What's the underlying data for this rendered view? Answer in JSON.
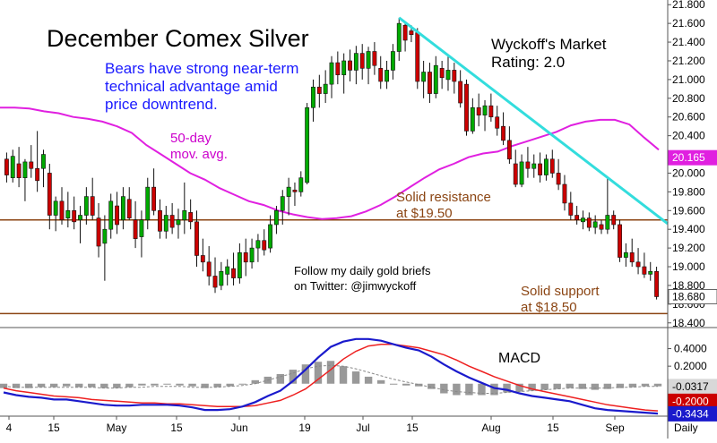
{
  "chart_data": [
    {
      "type": "candlestick",
      "title": "December Comex Silver",
      "annotations": {
        "bears": [
          "Bears have strong near-term",
          "technical advantage amid",
          "price downtrend."
        ],
        "ma": [
          "50-day",
          "mov. avg."
        ],
        "rating": [
          "Wyckoff's Market",
          "Rating: 2.0"
        ],
        "resistance": [
          "Solid resistance",
          "at $19.50"
        ],
        "support": [
          "Solid support",
          "at $18.50"
        ],
        "follow": [
          "Follow my daily gold briefs",
          "on Twitter:   @jimwyckoff"
        ]
      },
      "y_ticks": [
        "21.800",
        "21.600",
        "21.400",
        "21.200",
        "21.000",
        "20.800",
        "20.600",
        "20.400",
        "20.200",
        "20.000",
        "19.800",
        "19.600",
        "19.400",
        "19.200",
        "19.000",
        "18.800",
        "18.600",
        "18.400"
      ],
      "ylim": [
        18.35,
        21.85
      ],
      "grid": false,
      "last_price": "18.680",
      "ma_value": "20.165",
      "colors": {
        "up": "#00aa00",
        "down": "#cc0000",
        "ma": "#e020e0",
        "trendline": "#33dddd",
        "levels": "#8b4513",
        "price_tag": "#cc0000",
        "ma_tag": "#e020e0"
      },
      "levels": [
        {
          "label": "resistance",
          "value": 19.5
        },
        {
          "label": "support",
          "value": 18.5
        }
      ],
      "trendline": {
        "from": [
          "Jul 10",
          21.66
        ],
        "to": [
          "Sep 30",
          19.46
        ]
      },
      "moving_average_50": [
        20.7,
        20.7,
        20.69,
        20.66,
        20.64,
        20.6,
        20.58,
        20.55,
        20.5,
        20.43,
        20.3,
        20.2,
        20.1,
        20.0,
        19.93,
        19.84,
        19.77,
        19.7,
        19.66,
        19.6,
        19.56,
        19.53,
        19.51,
        19.52,
        19.54,
        19.59,
        19.66,
        19.75,
        19.85,
        19.95,
        20.04,
        20.1,
        20.17,
        20.21,
        20.23,
        20.29,
        20.34,
        20.39,
        20.44,
        20.51,
        20.55,
        20.57,
        20.57,
        20.52,
        20.38,
        20.25
      ],
      "candles": [
        {
          "o": 20.15,
          "h": 20.22,
          "l": 19.9,
          "c": 19.98
        },
        {
          "o": 19.95,
          "h": 20.25,
          "l": 19.9,
          "c": 20.18
        },
        {
          "o": 20.1,
          "h": 20.28,
          "l": 19.85,
          "c": 19.95
        },
        {
          "o": 19.95,
          "h": 20.15,
          "l": 19.7,
          "c": 20.12
        },
        {
          "o": 20.12,
          "h": 20.3,
          "l": 19.95,
          "c": 20.05
        },
        {
          "o": 20.05,
          "h": 20.45,
          "l": 19.8,
          "c": 19.92
        },
        {
          "o": 20.05,
          "h": 20.25,
          "l": 19.85,
          "c": 20.2
        },
        {
          "o": 20.0,
          "h": 20.1,
          "l": 19.4,
          "c": 19.55
        },
        {
          "o": 19.55,
          "h": 19.75,
          "l": 19.38,
          "c": 19.7
        },
        {
          "o": 19.7,
          "h": 19.85,
          "l": 19.45,
          "c": 19.5
        },
        {
          "o": 19.52,
          "h": 19.8,
          "l": 19.42,
          "c": 19.6
        },
        {
          "o": 19.6,
          "h": 19.75,
          "l": 19.4,
          "c": 19.48
        },
        {
          "o": 19.5,
          "h": 19.65,
          "l": 19.25,
          "c": 19.55
        },
        {
          "o": 19.55,
          "h": 19.85,
          "l": 19.45,
          "c": 19.75
        },
        {
          "o": 19.75,
          "h": 19.95,
          "l": 19.5,
          "c": 19.55
        },
        {
          "o": 19.52,
          "h": 19.68,
          "l": 19.1,
          "c": 19.22
        },
        {
          "o": 19.25,
          "h": 19.55,
          "l": 18.85,
          "c": 19.4
        },
        {
          "o": 19.4,
          "h": 19.78,
          "l": 19.3,
          "c": 19.7
        },
        {
          "o": 19.65,
          "h": 19.8,
          "l": 19.35,
          "c": 19.45
        },
        {
          "o": 19.5,
          "h": 19.85,
          "l": 19.4,
          "c": 19.75
        },
        {
          "o": 19.72,
          "h": 19.85,
          "l": 19.5,
          "c": 19.52
        },
        {
          "o": 19.5,
          "h": 19.7,
          "l": 19.2,
          "c": 19.3
        },
        {
          "o": 19.32,
          "h": 19.6,
          "l": 19.1,
          "c": 19.5
        },
        {
          "o": 19.5,
          "h": 19.95,
          "l": 19.4,
          "c": 19.85
        },
        {
          "o": 19.85,
          "h": 20.05,
          "l": 19.55,
          "c": 19.6
        },
        {
          "o": 19.6,
          "h": 19.72,
          "l": 19.3,
          "c": 19.38
        },
        {
          "o": 19.38,
          "h": 19.65,
          "l": 19.3,
          "c": 19.55
        },
        {
          "o": 19.55,
          "h": 19.68,
          "l": 19.35,
          "c": 19.42
        },
        {
          "o": 19.45,
          "h": 19.62,
          "l": 19.3,
          "c": 19.5
        },
        {
          "o": 19.5,
          "h": 19.9,
          "l": 19.35,
          "c": 19.6
        },
        {
          "o": 19.58,
          "h": 19.72,
          "l": 19.4,
          "c": 19.48
        },
        {
          "o": 19.48,
          "h": 19.6,
          "l": 19.0,
          "c": 19.12
        },
        {
          "o": 19.12,
          "h": 19.3,
          "l": 18.95,
          "c": 19.05
        },
        {
          "o": 19.05,
          "h": 19.22,
          "l": 18.8,
          "c": 18.9
        },
        {
          "o": 18.9,
          "h": 19.1,
          "l": 18.72,
          "c": 18.78
        },
        {
          "o": 18.8,
          "h": 19.05,
          "l": 18.75,
          "c": 18.95
        },
        {
          "o": 18.92,
          "h": 19.08,
          "l": 18.8,
          "c": 19.0
        },
        {
          "o": 18.98,
          "h": 19.15,
          "l": 18.8,
          "c": 18.88
        },
        {
          "o": 18.88,
          "h": 19.25,
          "l": 18.82,
          "c": 19.15
        },
        {
          "o": 19.15,
          "h": 19.3,
          "l": 18.9,
          "c": 19.05
        },
        {
          "o": 19.05,
          "h": 19.3,
          "l": 18.98,
          "c": 19.2
        },
        {
          "o": 19.2,
          "h": 19.35,
          "l": 19.05,
          "c": 19.28
        },
        {
          "o": 19.28,
          "h": 19.4,
          "l": 19.12,
          "c": 19.18
        },
        {
          "o": 19.2,
          "h": 19.55,
          "l": 19.15,
          "c": 19.45
        },
        {
          "o": 19.45,
          "h": 19.65,
          "l": 19.35,
          "c": 19.6
        },
        {
          "o": 19.6,
          "h": 19.82,
          "l": 19.45,
          "c": 19.75
        },
        {
          "o": 19.75,
          "h": 19.95,
          "l": 19.55,
          "c": 19.85
        },
        {
          "o": 19.82,
          "h": 19.9,
          "l": 19.65,
          "c": 19.8
        },
        {
          "o": 19.8,
          "h": 20.02,
          "l": 19.75,
          "c": 19.95
        },
        {
          "o": 19.9,
          "h": 20.75,
          "l": 19.88,
          "c": 20.7
        },
        {
          "o": 20.7,
          "h": 21.0,
          "l": 20.55,
          "c": 20.92
        },
        {
          "o": 20.92,
          "h": 21.05,
          "l": 20.7,
          "c": 20.85
        },
        {
          "o": 20.85,
          "h": 21.1,
          "l": 20.75,
          "c": 20.95
        },
        {
          "o": 20.95,
          "h": 21.25,
          "l": 20.8,
          "c": 21.18
        },
        {
          "o": 21.18,
          "h": 21.3,
          "l": 20.95,
          "c": 21.05
        },
        {
          "o": 21.05,
          "h": 21.28,
          "l": 20.85,
          "c": 21.2
        },
        {
          "o": 21.2,
          "h": 21.32,
          "l": 20.98,
          "c": 21.1
        },
        {
          "o": 21.1,
          "h": 21.36,
          "l": 20.95,
          "c": 21.28
        },
        {
          "o": 21.28,
          "h": 21.38,
          "l": 21.0,
          "c": 21.12
        },
        {
          "o": 21.12,
          "h": 21.35,
          "l": 20.95,
          "c": 21.3
        },
        {
          "o": 21.3,
          "h": 21.4,
          "l": 21.05,
          "c": 21.15
        },
        {
          "o": 21.12,
          "h": 21.25,
          "l": 20.9,
          "c": 20.98
        },
        {
          "o": 20.98,
          "h": 21.2,
          "l": 20.9,
          "c": 21.1
        },
        {
          "o": 21.1,
          "h": 21.38,
          "l": 21.0,
          "c": 21.3
        },
        {
          "o": 21.3,
          "h": 21.66,
          "l": 21.2,
          "c": 21.6
        },
        {
          "o": 21.58,
          "h": 21.62,
          "l": 21.3,
          "c": 21.42
        },
        {
          "o": 21.52,
          "h": 21.58,
          "l": 21.4,
          "c": 21.48
        },
        {
          "o": 21.5,
          "h": 21.55,
          "l": 20.9,
          "c": 20.98
        },
        {
          "o": 20.98,
          "h": 21.2,
          "l": 20.8,
          "c": 21.08
        },
        {
          "o": 21.08,
          "h": 21.18,
          "l": 20.75,
          "c": 20.85
        },
        {
          "o": 20.85,
          "h": 21.25,
          "l": 20.8,
          "c": 21.15
        },
        {
          "o": 21.12,
          "h": 21.2,
          "l": 20.9,
          "c": 21.02
        },
        {
          "o": 21.0,
          "h": 21.25,
          "l": 20.88,
          "c": 21.1
        },
        {
          "o": 21.1,
          "h": 21.18,
          "l": 20.85,
          "c": 20.98
        },
        {
          "o": 20.98,
          "h": 21.1,
          "l": 20.7,
          "c": 20.75
        },
        {
          "o": 20.95,
          "h": 21.0,
          "l": 20.4,
          "c": 20.45
        },
        {
          "o": 20.45,
          "h": 20.8,
          "l": 20.42,
          "c": 20.7
        },
        {
          "o": 20.7,
          "h": 20.85,
          "l": 20.5,
          "c": 20.62
        },
        {
          "o": 20.62,
          "h": 20.78,
          "l": 20.45,
          "c": 20.72
        },
        {
          "o": 20.72,
          "h": 20.85,
          "l": 20.55,
          "c": 20.6
        },
        {
          "o": 20.6,
          "h": 20.72,
          "l": 20.4,
          "c": 20.48
        },
        {
          "o": 20.5,
          "h": 20.65,
          "l": 20.3,
          "c": 20.35
        },
        {
          "o": 20.35,
          "h": 20.5,
          "l": 20.1,
          "c": 20.15
        },
        {
          "o": 20.1,
          "h": 20.25,
          "l": 19.85,
          "c": 19.88
        },
        {
          "o": 19.88,
          "h": 20.2,
          "l": 19.85,
          "c": 20.12
        },
        {
          "o": 20.12,
          "h": 20.28,
          "l": 19.95,
          "c": 20.05
        },
        {
          "o": 20.05,
          "h": 20.2,
          "l": 19.95,
          "c": 20.1
        },
        {
          "o": 20.1,
          "h": 20.22,
          "l": 19.9,
          "c": 19.98
        },
        {
          "o": 19.98,
          "h": 20.2,
          "l": 19.92,
          "c": 20.15
        },
        {
          "o": 20.15,
          "h": 20.25,
          "l": 19.95,
          "c": 20.0
        },
        {
          "o": 20.0,
          "h": 20.15,
          "l": 19.82,
          "c": 19.88
        },
        {
          "o": 19.88,
          "h": 19.98,
          "l": 19.6,
          "c": 19.68
        },
        {
          "o": 19.68,
          "h": 19.8,
          "l": 19.5,
          "c": 19.55
        },
        {
          "o": 19.55,
          "h": 19.65,
          "l": 19.45,
          "c": 19.5
        },
        {
          "o": 19.48,
          "h": 19.6,
          "l": 19.4,
          "c": 19.52
        },
        {
          "o": 19.52,
          "h": 19.58,
          "l": 19.38,
          "c": 19.42
        },
        {
          "o": 19.42,
          "h": 19.55,
          "l": 19.35,
          "c": 19.48
        },
        {
          "o": 19.45,
          "h": 19.5,
          "l": 19.35,
          "c": 19.4
        },
        {
          "o": 19.4,
          "h": 19.95,
          "l": 19.35,
          "c": 19.55
        },
        {
          "o": 19.55,
          "h": 19.6,
          "l": 19.4,
          "c": 19.45
        },
        {
          "o": 19.45,
          "h": 19.5,
          "l": 19.05,
          "c": 19.1
        },
        {
          "o": 19.1,
          "h": 19.25,
          "l": 19.0,
          "c": 19.15
        },
        {
          "o": 19.15,
          "h": 19.3,
          "l": 19.0,
          "c": 19.05
        },
        {
          "o": 19.05,
          "h": 19.2,
          "l": 18.92,
          "c": 19.0
        },
        {
          "o": 19.0,
          "h": 19.15,
          "l": 18.88,
          "c": 18.92
        },
        {
          "o": 18.92,
          "h": 19.05,
          "l": 18.85,
          "c": 18.95
        },
        {
          "o": 18.95,
          "h": 19.0,
          "l": 18.65,
          "c": 18.68
        }
      ]
    },
    {
      "type": "line",
      "title": "MACD",
      "y_ticks": [
        "0.4000",
        "0.2000",
        "0.0000"
      ],
      "ylim": [
        -0.37,
        0.62
      ],
      "tags": {
        "histogram": "-0.0317",
        "signal": "-0.2000",
        "macd": "-0.3434"
      },
      "x_labels": [
        "4",
        "15",
        "May",
        "15",
        "Jun",
        "19",
        "Jul",
        "15",
        "Aug",
        "15",
        "Sep"
      ],
      "x_unit_label": "Daily",
      "series": [
        {
          "key": "macd",
          "color": "#1a1acc",
          "values": [
            -0.1,
            -0.13,
            -0.15,
            -0.16,
            -0.18,
            -0.18,
            -0.2,
            -0.22,
            -0.24,
            -0.25,
            -0.25,
            -0.24,
            -0.24,
            -0.24,
            -0.25,
            -0.27,
            -0.3,
            -0.3,
            -0.29,
            -0.26,
            -0.21,
            -0.14,
            -0.08,
            0.03,
            0.16,
            0.3,
            0.42,
            0.48,
            0.51,
            0.51,
            0.49,
            0.45,
            0.41,
            0.38,
            0.31,
            0.22,
            0.14,
            0.07,
            0.01,
            -0.05,
            -0.07,
            -0.11,
            -0.14,
            -0.16,
            -0.18,
            -0.2,
            -0.24,
            -0.28,
            -0.3,
            -0.31,
            -0.32,
            -0.33,
            -0.34
          ]
        },
        {
          "key": "signal",
          "color": "#ee2020",
          "values": [
            -0.05,
            -0.08,
            -0.1,
            -0.12,
            -0.14,
            -0.15,
            -0.16,
            -0.18,
            -0.19,
            -0.2,
            -0.21,
            -0.22,
            -0.22,
            -0.23,
            -0.23,
            -0.24,
            -0.25,
            -0.26,
            -0.26,
            -0.26,
            -0.25,
            -0.22,
            -0.19,
            -0.13,
            -0.06,
            0.05,
            0.16,
            0.28,
            0.37,
            0.43,
            0.45,
            0.45,
            0.43,
            0.41,
            0.37,
            0.33,
            0.27,
            0.2,
            0.14,
            0.08,
            0.03,
            -0.02,
            -0.06,
            -0.09,
            -0.12,
            -0.15,
            -0.18,
            -0.21,
            -0.24,
            -0.26,
            -0.28,
            -0.3,
            -0.31
          ]
        },
        {
          "key": "histogram",
          "color": "#999999",
          "values": [
            -0.05,
            -0.05,
            -0.05,
            -0.04,
            -0.04,
            -0.03,
            -0.04,
            -0.04,
            -0.05,
            -0.05,
            -0.04,
            -0.02,
            -0.02,
            -0.01,
            -0.02,
            -0.03,
            -0.05,
            -0.04,
            -0.03,
            0.0,
            0.04,
            0.08,
            0.11,
            0.16,
            0.22,
            0.25,
            0.26,
            0.2,
            0.14,
            0.08,
            0.04,
            0.0,
            -0.02,
            -0.03,
            -0.06,
            -0.11,
            -0.13,
            -0.13,
            -0.13,
            -0.13,
            -0.1,
            -0.09,
            -0.08,
            -0.07,
            -0.06,
            -0.05,
            -0.06,
            -0.07,
            -0.06,
            -0.05,
            -0.04,
            -0.03,
            -0.03
          ]
        },
        {
          "key": "trigger",
          "color": "#888888",
          "values": [
            -0.03,
            -0.04,
            -0.04,
            -0.04,
            -0.04,
            -0.04,
            -0.04,
            -0.04,
            -0.05,
            -0.05,
            -0.04,
            -0.04,
            -0.03,
            -0.03,
            -0.03,
            -0.04,
            -0.04,
            -0.04,
            -0.03,
            -0.02,
            0.0,
            0.04,
            0.08,
            0.12,
            0.17,
            0.2,
            0.21,
            0.2,
            0.17,
            0.13,
            0.09,
            0.05,
            0.02,
            -0.01,
            -0.04,
            -0.07,
            -0.09,
            -0.1,
            -0.11,
            -0.11,
            -0.1,
            -0.09,
            -0.08,
            -0.07,
            -0.06,
            -0.05,
            -0.05,
            -0.05,
            -0.05,
            -0.04,
            -0.04,
            -0.03,
            -0.03
          ]
        }
      ]
    }
  ]
}
